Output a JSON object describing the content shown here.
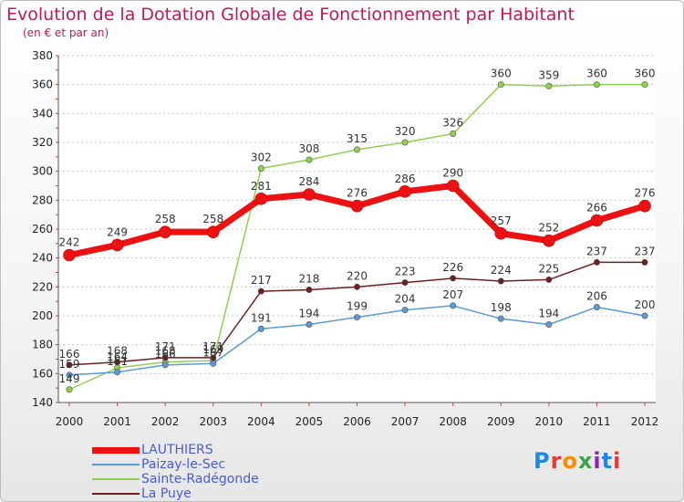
{
  "title": "Evolution de la Dotation Globale de Fonctionnement par Habitant",
  "subtitle": "(en € et par an)",
  "brand": {
    "letters": [
      "P",
      "r",
      "o",
      "x",
      "i",
      "t",
      "i"
    ],
    "colors": [
      "#1e88e5",
      "#e53935",
      "#fb8c00",
      "#43a047",
      "#8e24aa",
      "#1e88e5",
      "#e53935"
    ]
  },
  "chart_data": {
    "type": "line",
    "x": [
      "2000",
      "2001",
      "2002",
      "2003",
      "2004",
      "2005",
      "2006",
      "2007",
      "2008",
      "2009",
      "2010",
      "2011",
      "2012"
    ],
    "ylim": [
      140,
      380
    ],
    "yticks": [
      140,
      160,
      180,
      200,
      220,
      240,
      260,
      280,
      300,
      320,
      340,
      360,
      380
    ],
    "grid": "horizontal-dotted",
    "legend_position": "bottom-left",
    "series": [
      {
        "name": "LAUTHIERS",
        "color": "#ee1111",
        "values": [
          242,
          249,
          258,
          258,
          281,
          284,
          276,
          286,
          290,
          257,
          252,
          266,
          276
        ]
      },
      {
        "name": "Paizay-le-Sec",
        "color": "#5b9bd5",
        "values": [
          159,
          161,
          166,
          167,
          191,
          194,
          199,
          204,
          207,
          198,
          194,
          206,
          200
        ]
      },
      {
        "name": "Sainte-Radégonde",
        "color": "#8fd14f",
        "values": [
          149,
          164,
          168,
          169,
          302,
          308,
          315,
          320,
          326,
          360,
          359,
          360,
          360
        ]
      },
      {
        "name": "La Puye",
        "color": "#6b1f1f",
        "values": [
          166,
          168,
          171,
          171,
          217,
          218,
          220,
          223,
          226,
          224,
          225,
          237,
          237
        ]
      }
    ]
  }
}
